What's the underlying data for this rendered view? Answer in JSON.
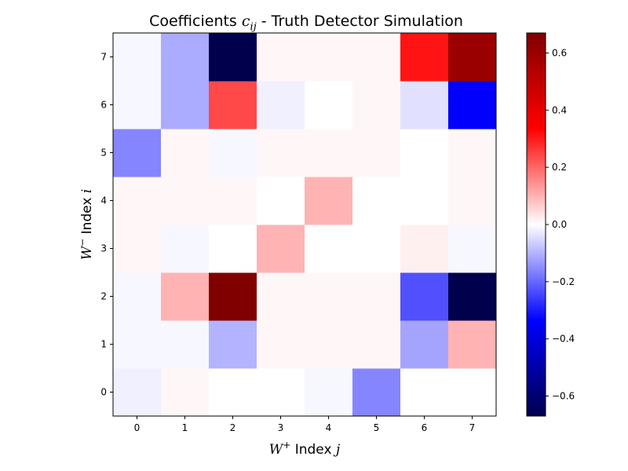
{
  "chart_data": {
    "type": "heatmap",
    "title": {
      "prefix": "Coefficients ",
      "symbol": "c",
      "subscript": "ij",
      "suffix": " - Truth Detector Simulation"
    },
    "xlabel": {
      "symbol": "W",
      "superscript": "+",
      "text": " Index ",
      "index": "j"
    },
    "ylabel": {
      "symbol": "W",
      "superscript": "−",
      "text": " Index ",
      "index": "i"
    },
    "x_ticks": [
      "0",
      "1",
      "2",
      "3",
      "4",
      "5",
      "6",
      "7"
    ],
    "y_ticks": [
      "0",
      "1",
      "2",
      "3",
      "4",
      "5",
      "6",
      "7"
    ],
    "colormap": "seismic",
    "vmin": -0.67,
    "vmax": 0.67,
    "colorbar_ticks": [
      0.6,
      0.4,
      0.2,
      0.0,
      -0.2,
      -0.4,
      -0.6
    ],
    "colorbar_tick_labels": [
      "0.6",
      "0.4",
      "0.2",
      "0.0",
      "−0.2",
      "−0.4",
      "−0.6"
    ],
    "rows_i_values_j0_to_j7": [
      [
        -0.02,
        0.01,
        0.0,
        0.0,
        -0.01,
        -0.16,
        0.0,
        0.0
      ],
      [
        -0.01,
        -0.01,
        -0.1,
        0.01,
        0.01,
        0.01,
        -0.12,
        0.1
      ],
      [
        -0.01,
        0.1,
        0.67,
        0.01,
        0.01,
        0.01,
        -0.23,
        -0.67
      ],
      [
        0.01,
        -0.01,
        0.0,
        0.1,
        0.0,
        0.0,
        0.02,
        -0.01
      ],
      [
        0.01,
        0.01,
        0.01,
        0.0,
        0.1,
        0.0,
        0.0,
        0.01
      ],
      [
        -0.16,
        0.01,
        -0.01,
        0.01,
        0.01,
        0.01,
        0.0,
        0.01
      ],
      [
        -0.01,
        -0.11,
        0.24,
        -0.02,
        0.0,
        0.01,
        -0.04,
        -0.34
      ],
      [
        -0.01,
        -0.11,
        -0.67,
        0.01,
        0.01,
        0.01,
        0.31,
        0.6
      ]
    ]
  }
}
